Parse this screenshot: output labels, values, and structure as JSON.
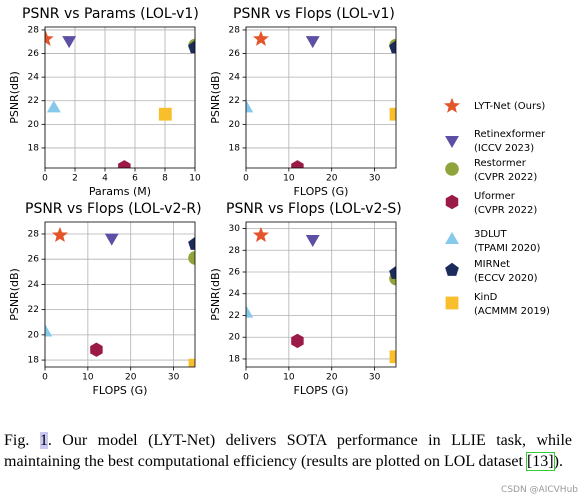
{
  "legend": [
    {
      "name": "LYT-Net (Ours)",
      "venue": null,
      "color": "#e4552b",
      "marker": "star"
    },
    {
      "name": "Retinexformer",
      "venue": "(ICCV 2023)",
      "color": "#5d4fa3",
      "marker": "tri-down"
    },
    {
      "name": "Restormer",
      "venue": "(CVPR 2022)",
      "color": "#8fa53b",
      "marker": "circle"
    },
    {
      "name": "Uformer",
      "venue": "(CVPR 2022)",
      "color": "#9c1a48",
      "marker": "hexagon"
    },
    {
      "name": "3DLUT",
      "venue": "(TPAMI 2020)",
      "color": "#86c9ea",
      "marker": "tri-up"
    },
    {
      "name": "MIRNet",
      "venue": "(ECCV 2020)",
      "color": "#1b2b5c",
      "marker": "pentagon"
    },
    {
      "name": "KinD",
      "venue": "(ACMMM 2019)",
      "color": "#f9be2b",
      "marker": "square"
    }
  ],
  "chart_data": [
    {
      "type": "scatter",
      "title": "PSNR vs Params (LOL-v1)",
      "xlabel": "Params (M)",
      "ylabel": "PSNR(dB)",
      "x": [
        0.045,
        1.61,
        10,
        5.29,
        0.59,
        10,
        8.02
      ],
      "values": [
        27.23,
        27.14,
        26.68,
        16.36,
        21.35,
        26.52,
        20.86
      ],
      "xlim": [
        0,
        10
      ],
      "ylim": [
        16.3,
        28.25
      ],
      "xticks": [
        0,
        2,
        4,
        6,
        8,
        10
      ],
      "yticks": [
        18,
        20,
        22,
        24,
        26,
        28
      ],
      "grid": true
    },
    {
      "type": "scatter",
      "title": "PSNR vs Flops (LOL-v1)",
      "xlabel": "FLOPS (G)",
      "ylabel": "PSNR(dB)",
      "x": [
        3.49,
        15.57,
        35,
        12,
        0.075,
        35,
        35
      ],
      "values": [
        27.23,
        27.14,
        26.68,
        16.36,
        21.35,
        26.52,
        20.86
      ],
      "xlim": [
        0,
        35
      ],
      "ylim": [
        16.3,
        28.25
      ],
      "xticks": [
        0,
        10,
        20,
        30
      ],
      "yticks": [
        18,
        20,
        22,
        24,
        26,
        28
      ],
      "grid": true
    },
    {
      "type": "scatter",
      "title": "PSNR vs Flops (LOL-v2-R)",
      "xlabel": "FLOPS (G)",
      "ylabel": "PSNR(dB)",
      "x": [
        3.49,
        15.57,
        35,
        12,
        0.075,
        35,
        35
      ],
      "values": [
        27.9,
        27.71,
        26.1,
        18.82,
        20.19,
        27.2,
        17.6
      ],
      "xlim": [
        0,
        35
      ],
      "ylim": [
        17.45,
        28.95
      ],
      "xticks": [
        0,
        10,
        20,
        30
      ],
      "yticks": [
        18,
        20,
        22,
        24,
        26,
        28
      ],
      "grid": true
    },
    {
      "type": "scatter",
      "title": "PSNR vs Flops (LOL-v2-S)",
      "xlabel": "FLOPS (G)",
      "ylabel": "PSNR(dB)",
      "x": [
        3.49,
        15.57,
        35,
        12,
        0.075,
        35,
        35
      ],
      "values": [
        29.38,
        29.04,
        25.4,
        19.66,
        22.17,
        25.9,
        18.2
      ],
      "xlim": [
        0,
        35
      ],
      "ylim": [
        17.26,
        30.6
      ],
      "xticks": [
        0,
        10,
        20,
        30
      ],
      "yticks": [
        18,
        20,
        22,
        24,
        26,
        28,
        30
      ],
      "grid": true
    }
  ],
  "caption": {
    "label": "Fig.",
    "number": "1",
    "text": ". Our model (LYT-Net) delivers SOTA performance in LLIE task, while maintaining the best computational efficiency (results are plotted on LOL dataset ",
    "ref": "[13]",
    "end": ")."
  },
  "watermark": "CSDN @AICVHub"
}
